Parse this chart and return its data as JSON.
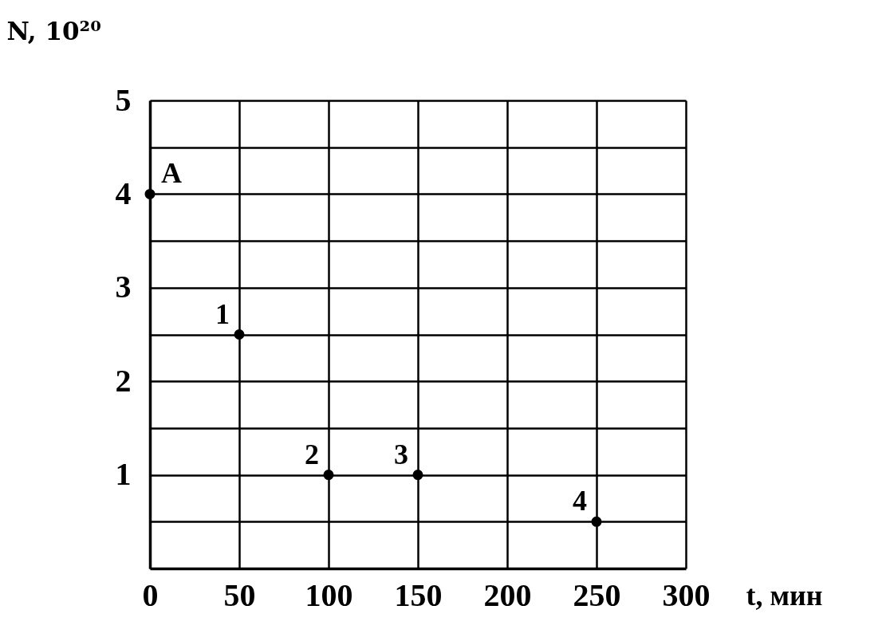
{
  "chart_data": {
    "type": "scatter",
    "xlabel": "t, мин",
    "ylabel": "N, 10²⁰",
    "x": [
      0,
      50,
      100,
      150,
      250
    ],
    "series": [
      {
        "color": "#000000",
        "values": [
          4,
          2.5,
          1,
          1,
          0.5
        ]
      }
    ],
    "xlim": [
      0,
      300
    ],
    "ylim": [
      0,
      5
    ],
    "xticks": [
      0,
      50,
      100,
      150,
      200,
      250,
      300
    ],
    "yticks": [
      {
        "value": 0.5,
        "label": null
      },
      1,
      {
        "value": 1.5,
        "label": null
      },
      2,
      {
        "value": 2.5,
        "label": null
      },
      3,
      {
        "value": 3.5,
        "label": null
      },
      4,
      {
        "value": 4.5,
        "label": null
      },
      5
    ],
    "grid": true,
    "marker": "circle",
    "annotations": [
      {
        "text": "A",
        "x": 0,
        "y": 4
      },
      {
        "text": "1",
        "x": 50,
        "y": 2.5
      },
      {
        "text": "2",
        "x": 100,
        "y": 1
      },
      {
        "text": "3",
        "x": 150,
        "y": 1
      },
      {
        "text": "4",
        "x": 250,
        "y": 0.5
      }
    ]
  }
}
